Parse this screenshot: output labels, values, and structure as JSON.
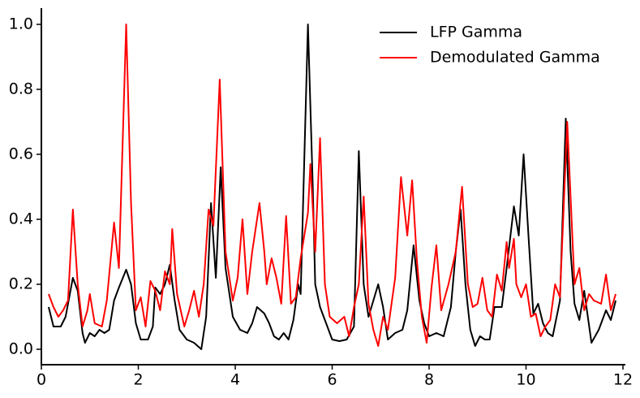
{
  "chart_data": {
    "type": "line",
    "xlim": [
      0,
      12
    ],
    "ylim": [
      -0.0475,
      1.05
    ],
    "xticks": [
      0,
      2,
      4,
      6,
      8,
      10,
      12
    ],
    "yticks": [
      {
        "value": 0,
        "label": "0.0"
      },
      0.2,
      0.4,
      0.6,
      0.8,
      {
        "value": 1,
        "label": "1.0"
      }
    ],
    "legend": "upper right",
    "series": [
      {
        "name": "LFP Gamma",
        "color": "#000000",
        "x": [
          0.15,
          0.25,
          0.4,
          0.5,
          0.65,
          0.75,
          0.85,
          0.9,
          1.0,
          1.1,
          1.2,
          1.3,
          1.4,
          1.5,
          1.6,
          1.75,
          1.85,
          1.95,
          2.05,
          2.2,
          2.3,
          2.35,
          2.45,
          2.55,
          2.65,
          2.75,
          2.85,
          3.0,
          3.15,
          3.3,
          3.4,
          3.5,
          3.6,
          3.7,
          3.8,
          3.95,
          4.1,
          4.25,
          4.35,
          4.45,
          4.6,
          4.7,
          4.8,
          4.9,
          5.0,
          5.1,
          5.2,
          5.3,
          5.35,
          5.5,
          5.6,
          5.65,
          5.75,
          5.85,
          6.0,
          6.15,
          6.3,
          6.45,
          6.55,
          6.65,
          6.75,
          6.85,
          6.95,
          7.05,
          7.15,
          7.3,
          7.45,
          7.55,
          7.68,
          7.8,
          7.9,
          8.0,
          8.15,
          8.3,
          8.45,
          8.55,
          8.65,
          8.75,
          8.85,
          8.95,
          9.05,
          9.15,
          9.25,
          9.35,
          9.5,
          9.6,
          9.75,
          9.85,
          9.95,
          10.05,
          10.15,
          10.25,
          10.35,
          10.45,
          10.55,
          10.7,
          10.82,
          10.92,
          11.0,
          11.1,
          11.2,
          11.35,
          11.5,
          11.65,
          11.75,
          11.85
        ],
        "values": [
          0.13,
          0.07,
          0.07,
          0.1,
          0.22,
          0.18,
          0.05,
          0.02,
          0.05,
          0.04,
          0.06,
          0.05,
          0.06,
          0.15,
          0.19,
          0.245,
          0.2,
          0.08,
          0.03,
          0.03,
          0.07,
          0.19,
          0.17,
          0.2,
          0.26,
          0.15,
          0.06,
          0.03,
          0.02,
          0.0,
          0.1,
          0.45,
          0.22,
          0.56,
          0.25,
          0.1,
          0.06,
          0.05,
          0.08,
          0.13,
          0.11,
          0.08,
          0.04,
          0.03,
          0.05,
          0.03,
          0.09,
          0.2,
          0.17,
          1.0,
          0.5,
          0.2,
          0.13,
          0.09,
          0.03,
          0.025,
          0.03,
          0.07,
          0.61,
          0.2,
          0.1,
          0.15,
          0.2,
          0.13,
          0.03,
          0.05,
          0.06,
          0.12,
          0.32,
          0.15,
          0.08,
          0.04,
          0.05,
          0.04,
          0.13,
          0.3,
          0.43,
          0.2,
          0.06,
          0.01,
          0.04,
          0.03,
          0.03,
          0.13,
          0.13,
          0.25,
          0.44,
          0.35,
          0.6,
          0.35,
          0.11,
          0.14,
          0.08,
          0.05,
          0.04,
          0.15,
          0.71,
          0.3,
          0.14,
          0.09,
          0.18,
          0.02,
          0.06,
          0.12,
          0.09,
          0.15
        ]
      },
      {
        "name": "Demodulated Gamma",
        "color": "#ff0000",
        "x": [
          0.15,
          0.25,
          0.35,
          0.45,
          0.55,
          0.65,
          0.75,
          0.85,
          0.95,
          1.0,
          1.1,
          1.25,
          1.35,
          1.5,
          1.6,
          1.75,
          1.85,
          1.95,
          2.05,
          2.15,
          2.25,
          2.35,
          2.45,
          2.55,
          2.65,
          2.7,
          2.8,
          2.95,
          3.05,
          3.15,
          3.25,
          3.35,
          3.45,
          3.55,
          3.68,
          3.8,
          3.85,
          3.95,
          4.05,
          4.15,
          4.25,
          4.35,
          4.5,
          4.6,
          4.65,
          4.75,
          4.85,
          4.95,
          5.05,
          5.15,
          5.25,
          5.35,
          5.5,
          5.55,
          5.65,
          5.75,
          5.85,
          5.95,
          6.1,
          6.25,
          6.35,
          6.45,
          6.55,
          6.65,
          6.75,
          6.85,
          6.95,
          7.05,
          7.15,
          7.3,
          7.42,
          7.55,
          7.65,
          7.75,
          7.85,
          7.95,
          8.05,
          8.15,
          8.25,
          8.4,
          8.55,
          8.68,
          8.8,
          8.9,
          9.0,
          9.1,
          9.2,
          9.3,
          9.4,
          9.5,
          9.6,
          9.65,
          9.75,
          9.8,
          9.9,
          10.0,
          10.1,
          10.2,
          10.3,
          10.4,
          10.5,
          10.6,
          10.7,
          10.85,
          11.0,
          11.1,
          11.2,
          11.3,
          11.4,
          11.55,
          11.65,
          11.75,
          11.85
        ],
        "values": [
          0.17,
          0.13,
          0.1,
          0.12,
          0.15,
          0.43,
          0.2,
          0.07,
          0.12,
          0.17,
          0.08,
          0.07,
          0.15,
          0.39,
          0.25,
          1.0,
          0.45,
          0.12,
          0.16,
          0.07,
          0.21,
          0.18,
          0.12,
          0.24,
          0.2,
          0.37,
          0.17,
          0.07,
          0.12,
          0.18,
          0.1,
          0.2,
          0.43,
          0.38,
          0.83,
          0.3,
          0.25,
          0.15,
          0.22,
          0.4,
          0.17,
          0.3,
          0.45,
          0.3,
          0.2,
          0.28,
          0.22,
          0.14,
          0.41,
          0.14,
          0.16,
          0.28,
          0.42,
          0.57,
          0.3,
          0.65,
          0.2,
          0.1,
          0.08,
          0.1,
          0.04,
          0.13,
          0.2,
          0.47,
          0.14,
          0.06,
          0.01,
          0.1,
          0.06,
          0.22,
          0.53,
          0.35,
          0.52,
          0.27,
          0.1,
          0.02,
          0.19,
          0.32,
          0.12,
          0.2,
          0.3,
          0.5,
          0.2,
          0.13,
          0.14,
          0.22,
          0.12,
          0.1,
          0.23,
          0.18,
          0.33,
          0.25,
          0.34,
          0.2,
          0.16,
          0.2,
          0.1,
          0.11,
          0.04,
          0.07,
          0.09,
          0.2,
          0.16,
          0.7,
          0.2,
          0.25,
          0.12,
          0.17,
          0.15,
          0.14,
          0.23,
          0.12,
          0.17
        ]
      }
    ]
  }
}
